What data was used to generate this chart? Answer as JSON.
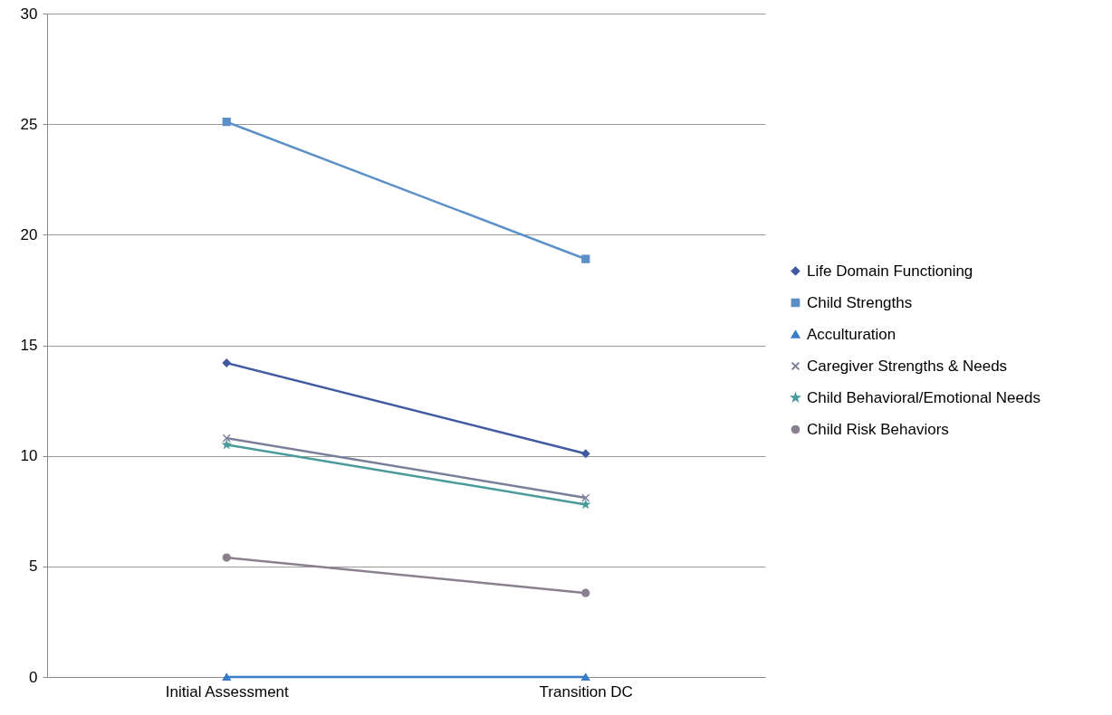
{
  "chart_data": {
    "type": "line",
    "categories": [
      "Initial Assessment",
      "Transition DC"
    ],
    "series": [
      {
        "name": "Life Domain Functioning",
        "color": "#3f5aa0",
        "marker": "diamond",
        "values": [
          14.2,
          10.1
        ]
      },
      {
        "name": "Child Strengths",
        "color": "#5b8fc7",
        "marker": "square",
        "values": [
          25.1,
          18.9
        ]
      },
      {
        "name": "Acculturation",
        "color": "#3a7cc8",
        "marker": "triangle",
        "values": [
          0,
          0
        ]
      },
      {
        "name": "Caregiver Strengths & Needs",
        "color": "#7a7f99",
        "marker": "cross",
        "values": [
          10.8,
          8.1
        ]
      },
      {
        "name": "Child Behavioral/Emotional Needs",
        "color": "#4a9a9a",
        "marker": "star",
        "values": [
          10.5,
          7.8
        ]
      },
      {
        "name": "Child Risk Behaviors",
        "color": "#8a7f8f",
        "marker": "circle",
        "values": [
          5.4,
          3.8
        ]
      }
    ],
    "ylim": [
      0,
      30
    ],
    "yticks": [
      0,
      5,
      10,
      15,
      20,
      25,
      30
    ],
    "grid": "y",
    "legend": "right",
    "line_style": "solid"
  }
}
